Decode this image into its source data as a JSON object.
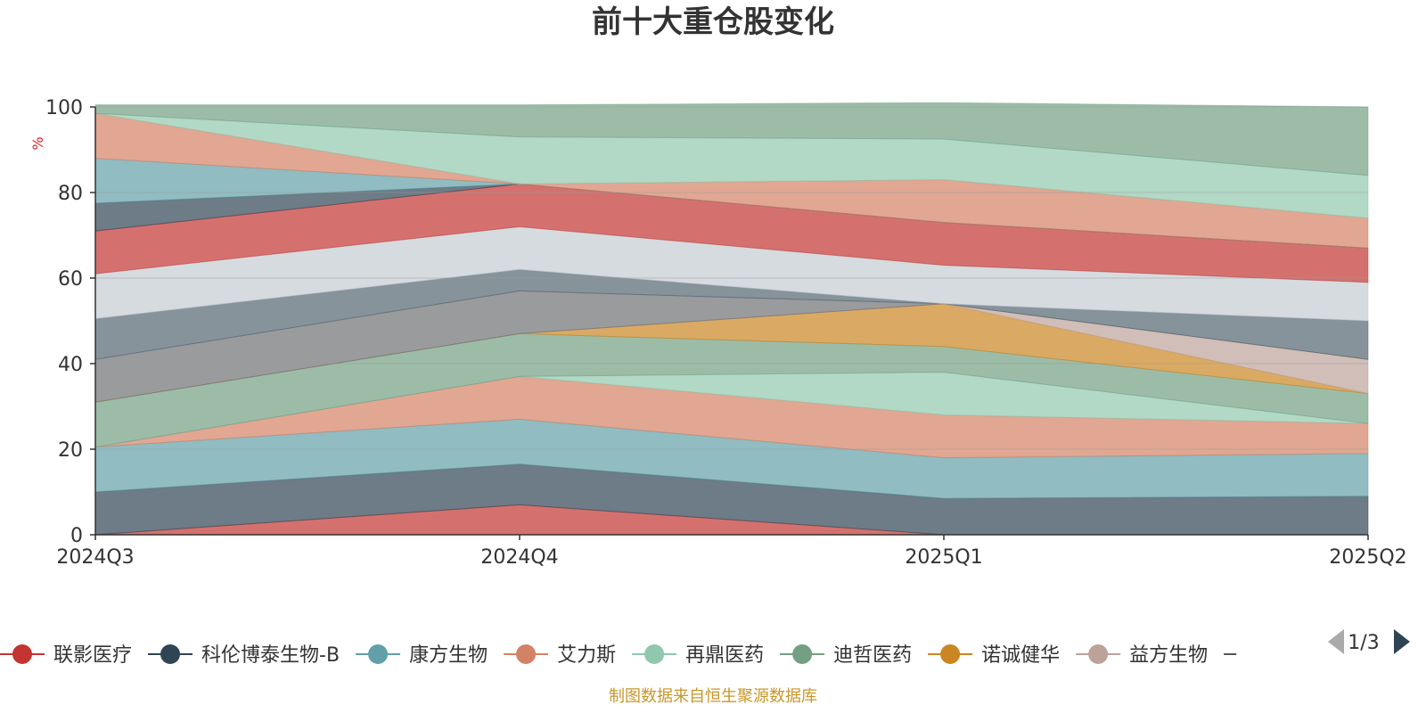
{
  "chart_data": {
    "type": "area",
    "stacked": true,
    "title": "前十大重仓股变化",
    "xlabel": "",
    "ylabel": "%",
    "x": [
      "2024Q3",
      "2024Q4",
      "2025Q1",
      "2025Q2"
    ],
    "ylim": [
      0,
      100
    ],
    "yticks": [
      "0",
      "20",
      "40",
      "60",
      "80",
      "100"
    ],
    "grid": true,
    "legend_position": "bottom",
    "series": [
      {
        "name": "联影医疗",
        "color": "#c23531",
        "values": [
          0,
          7,
          0,
          0
        ]
      },
      {
        "name": "",
        "color": "#2f4554",
        "values": [
          10,
          9.5,
          8.5,
          9
        ]
      },
      {
        "name": "",
        "color": "#61a0a8",
        "values": [
          10.5,
          10.5,
          9.5,
          10
        ]
      },
      {
        "name": "",
        "color": "#d48265",
        "values": [
          0,
          10,
          10,
          7
        ]
      },
      {
        "name": "",
        "color": "#91c7ae",
        "values": [
          0,
          0,
          10,
          0
        ]
      },
      {
        "name": "",
        "color": "#749f83",
        "values": [
          10.5,
          10,
          6,
          7
        ]
      },
      {
        "name": "",
        "color": "#ca8622",
        "values": [
          0,
          0,
          10,
          0
        ]
      },
      {
        "name": "",
        "color": "#bda29a",
        "values": [
          0,
          0,
          0,
          8
        ]
      },
      {
        "name": "",
        "color": "#6e7074",
        "values": [
          10,
          10,
          0,
          0
        ]
      },
      {
        "name": "",
        "color": "#546570",
        "values": [
          9.5,
          5,
          0,
          9
        ]
      },
      {
        "name": "",
        "color": "#c4ccd3",
        "values": [
          10.5,
          10,
          9,
          9
        ]
      },
      {
        "name": "",
        "color": "#c23531",
        "values": [
          10,
          10,
          10,
          8
        ]
      },
      {
        "name": "",
        "color": "#2f4554",
        "values": [
          6.5,
          0,
          0,
          0
        ]
      },
      {
        "name": "",
        "color": "#61a0a8",
        "values": [
          10.5,
          0,
          0,
          0
        ]
      },
      {
        "name": "",
        "color": "#d48265",
        "values": [
          10.5,
          0,
          10,
          7
        ]
      },
      {
        "name": "",
        "color": "#91c7ae",
        "values": [
          0,
          11,
          9.5,
          10
        ]
      },
      {
        "name": "",
        "color": "#749f83",
        "values": [
          2,
          7.5,
          8.5,
          16
        ]
      }
    ],
    "legend": {
      "items": [
        {
          "name": "联影医疗",
          "color": "#c23531"
        },
        {
          "name": "科伦博泰生物-B",
          "color": "#2f4554"
        },
        {
          "name": "康方生物",
          "color": "#61a0a8"
        },
        {
          "name": "艾力斯",
          "color": "#d48265"
        },
        {
          "name": "再鼎医药",
          "color": "#91c7ae"
        },
        {
          "name": "迪哲医药",
          "color": "#749f83"
        },
        {
          "name": "诺诚健华",
          "color": "#ca8622"
        },
        {
          "name": "益方生物",
          "color": "#bda29a"
        }
      ],
      "page_indicator": "1/3"
    },
    "source_note": "制图数据来自恒生聚源数据库"
  }
}
